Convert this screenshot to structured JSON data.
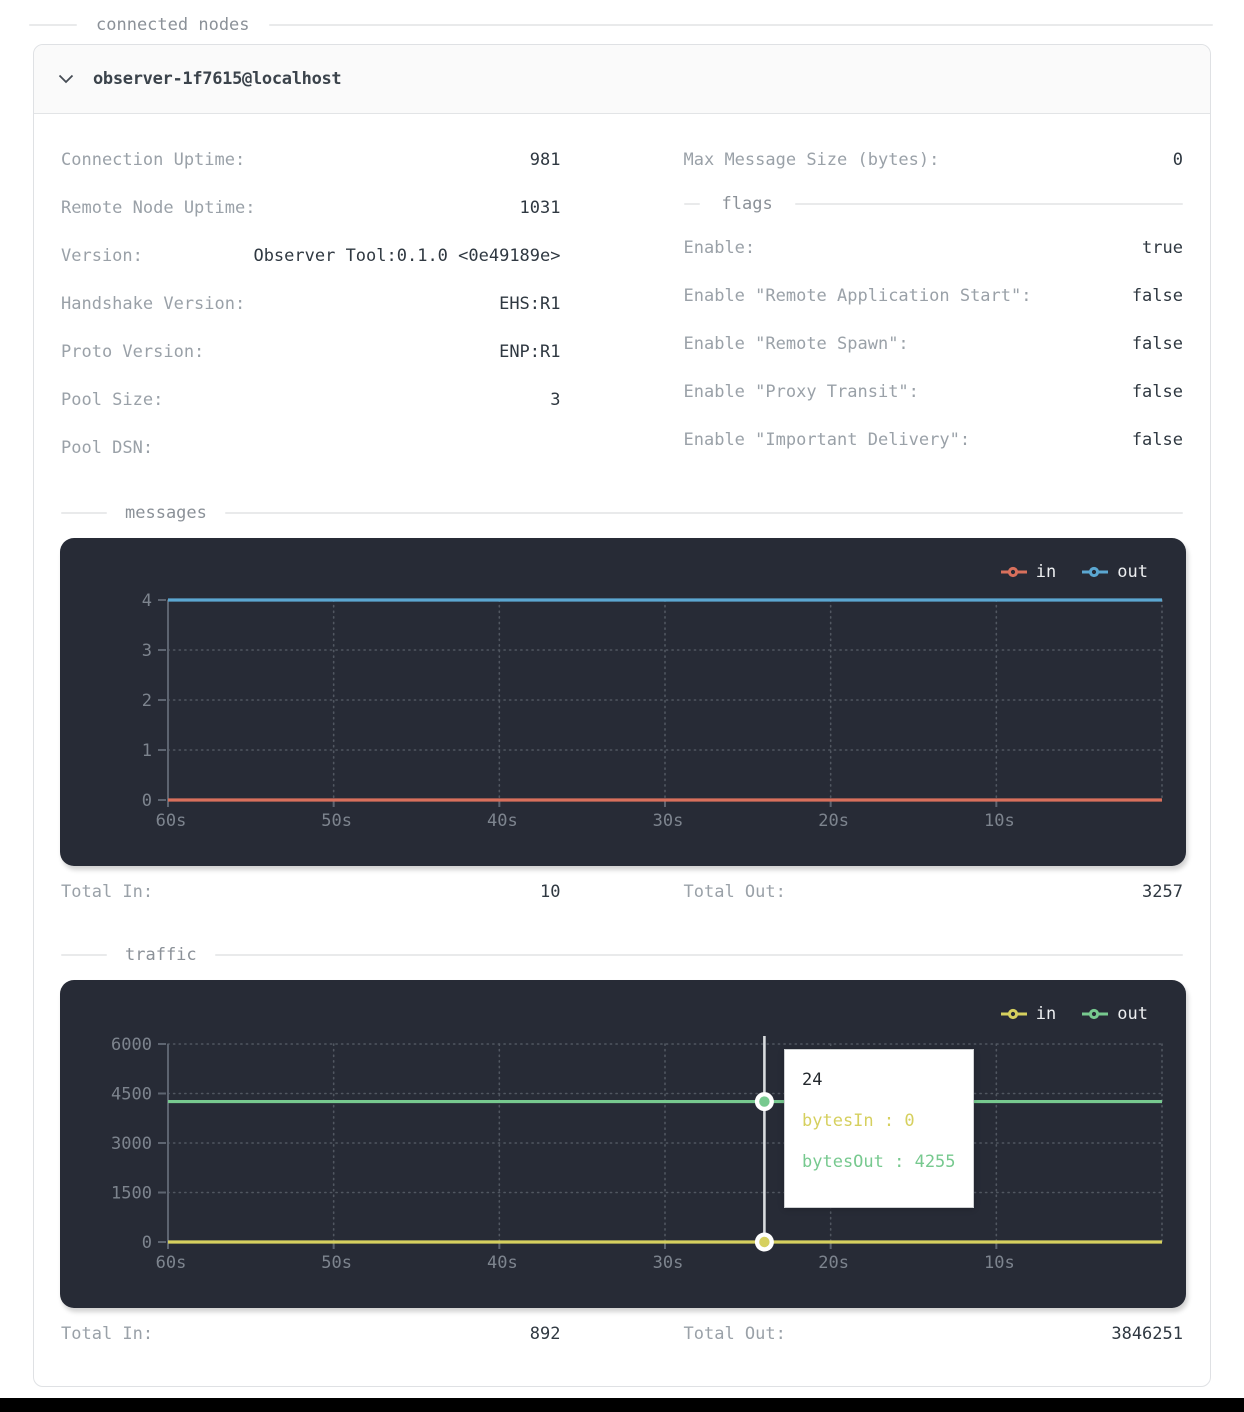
{
  "page": {
    "section_title": "connected nodes"
  },
  "node_card": {
    "title": "observer-1f7615@localhost",
    "stats_left": [
      {
        "label": "Connection Uptime:",
        "value": "981"
      },
      {
        "label": "Remote Node Uptime:",
        "value": "1031"
      },
      {
        "label": "Version:",
        "value": "Observer Tool:0.1.0 <0e49189e>"
      },
      {
        "label": "Handshake Version:",
        "value": "EHS:R1"
      },
      {
        "label": "Proto Version:",
        "value": "ENP:R1"
      },
      {
        "label": "Pool Size:",
        "value": "3"
      },
      {
        "label": "Pool DSN:",
        "value": ""
      }
    ],
    "max_message_size": {
      "label": "Max Message Size (bytes):",
      "value": "0"
    },
    "flags": {
      "section_title": "flags",
      "items": [
        {
          "label": "Enable:",
          "value": "true"
        },
        {
          "label": "Enable \"Remote Application Start\":",
          "value": "false"
        },
        {
          "label": "Enable \"Remote Spawn\":",
          "value": "false"
        },
        {
          "label": "Enable \"Proxy Transit\":",
          "value": "false"
        },
        {
          "label": "Enable \"Important Delivery\":",
          "value": "false"
        }
      ]
    }
  },
  "messages_section": {
    "section_title": "messages",
    "totals": {
      "in_label": "Total In:",
      "in_value": "10",
      "out_label": "Total Out:",
      "out_value": "3257"
    }
  },
  "traffic_section": {
    "section_title": "traffic",
    "totals": {
      "in_label": "Total In:",
      "in_value": "892",
      "out_label": "Total Out:",
      "out_value": "3846251"
    }
  },
  "colors": {
    "chart_bg": "#272b36",
    "grid": "#515761",
    "axis": "#5d6470",
    "tick_label": "#7d848e",
    "legend_text": "#eceef0",
    "cursor_line": "#d8dbde",
    "messages_in": "#d8705c",
    "messages_out": "#5ba7d1",
    "traffic_in": "#d6d05f",
    "traffic_out": "#77c98f"
  },
  "chart_data": [
    {
      "id": "messages",
      "type": "line",
      "title": "messages",
      "x_axis": {
        "ticks": [
          "60s",
          "50s",
          "40s",
          "30s",
          "20s",
          "10s"
        ],
        "range_seconds": [
          60,
          0
        ]
      },
      "y_axis": {
        "ticks": [
          0,
          1,
          2,
          3,
          4
        ],
        "range": [
          0,
          4
        ]
      },
      "series": [
        {
          "name": "in",
          "color": "#d8705c",
          "value": 0
        },
        {
          "name": "out",
          "color": "#5ba7d1",
          "value": 4
        }
      ],
      "legend_position": "top-right",
      "grid": "dotted"
    },
    {
      "id": "traffic",
      "type": "line",
      "title": "traffic",
      "x_axis": {
        "ticks": [
          "60s",
          "50s",
          "40s",
          "30s",
          "20s",
          "10s"
        ],
        "range_seconds": [
          60,
          0
        ]
      },
      "y_axis": {
        "ticks": [
          0,
          1500,
          3000,
          4500,
          6000
        ],
        "range": [
          0,
          6000
        ]
      },
      "series": [
        {
          "name": "in",
          "color": "#d6d05f",
          "value": 0
        },
        {
          "name": "out",
          "color": "#77c98f",
          "value": 4255
        }
      ],
      "cursor": {
        "x_seconds": 24,
        "points": [
          {
            "series": "out",
            "value": 4255
          },
          {
            "series": "in",
            "value": 0
          }
        ]
      },
      "tooltip": {
        "title": "24",
        "rows": [
          {
            "series": "in",
            "label": "bytesIn",
            "value": "0",
            "text": "bytesIn : 0"
          },
          {
            "series": "out",
            "label": "bytesOut",
            "value": "4255",
            "text": "bytesOut : 4255"
          }
        ]
      },
      "legend_position": "top-right",
      "grid": "dotted"
    }
  ]
}
